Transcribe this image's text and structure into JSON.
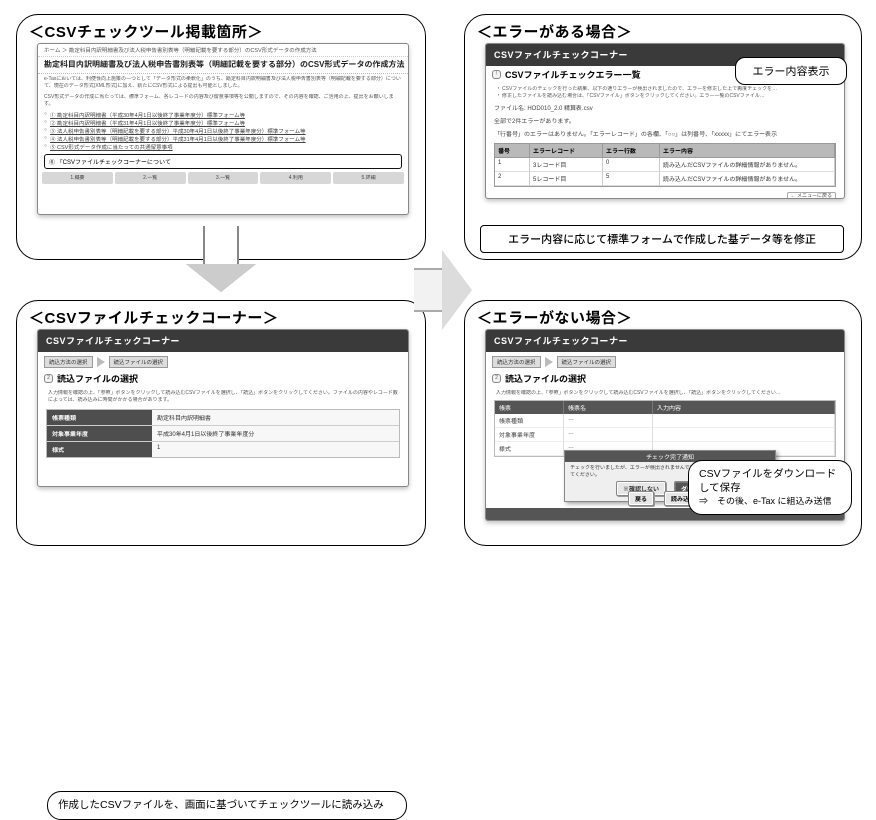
{
  "panelA": {
    "title": "CSVチェックツール掲載箇所",
    "breadcrumb": "ホーム ＞ 勘定科目内訳明細書及び法人税申告書別表等（明細記載を要する部分）のCSV形式データの作成方法",
    "heading": "勘定科目内訳明細書及び法人税申告書別表等（明細記載を要する部分）のCSV形式データの作成方法",
    "para1": "e-Taxにおいては、利便性向上施策の一つとして「データ形式の柔軟化」のうち、勘定科目内訳明細書及び法人税申告書別表等（明細記載を要する部分）について、現在のデータ形式(XML形式)に加え、新たにCSV形式による提出も可能としました。",
    "para2": "CSV形式データの作成に当たっては、標準フォーム、各レコードの内容及び留意事項等を公開しますので、その内容を確認、ご活用の上、提出をお願いします。",
    "links": [
      "① 勘定科目内訳明細書（平成30年4月1日以後終了事業年度分）標準フォーム等",
      "② 勘定科目内訳明細書（平成31年4月1日以後終了事業年度分）標準フォーム等",
      "③ 法人税申告書別表等（明細記載を要する部分）平成30年4月1日以後終了事業年度分）標準フォーム等",
      "④ 法人税申告書別表等（明細記載を要する部分）平成31年4月1日以後終了事業年度分）標準フォーム等",
      "⑤ CSV形式データ作成に当たっての共通留意事項"
    ],
    "boxlink": "⑥ 「CSVファイルチェックコーナーについて",
    "tabs": [
      "1.概要",
      "2.一覧",
      "3.一覧",
      "4.利用",
      "5.詳細"
    ]
  },
  "panelB": {
    "title": "CSVファイルチェックコーナー",
    "barTitle": "CSVファイルチェックコーナー",
    "step1": "読込方法の選択",
    "step2": "読込ファイルの選択",
    "sectionIcon": "2",
    "sectionTitle": "読込ファイルの選択",
    "note": "入力情報を確認の上、「参照」ボタンをクリックして読み込むCSVファイルを選択し、「読込」ボタンをクリックしてください。ファイルの内容やレコード数によっては、読み込みに時間がかかる場合があります。",
    "form": [
      {
        "label": "帳票種類",
        "value": "勘定科目内訳明細書"
      },
      {
        "label": "対象事業年度",
        "value": "平成30年4月1日以後終了事業年度分"
      },
      {
        "label": "様式",
        "value": "1"
      }
    ],
    "callout": "作成したCSVファイルを、画面に基づいてチェックツールに読み込み"
  },
  "panelC": {
    "title": "エラーがある場合",
    "barTitle": "CSVファイルチェックコーナー",
    "sectionIcon": "!",
    "sectionTitle": "CSVファイルチェックエラー一覧",
    "bullets": [
      "CSVファイルのチェックを行った結果、以下の通りエラーが検出されましたので、エラーを修正した上で再度チェックを…",
      "修正したファイルを読み込む場合は、「CSVファイル」ボタンをクリックしてください。エラー一覧のCSVファイル…"
    ],
    "meta": [
      "ファイル名: HOD010_2.0 精算表.csv",
      "全部で2件エラーがあります。",
      "「行番号」のエラーはありません。「エラーレコード」の各欄、「○○」は列番号、「xxxxx」にてエラー表示"
    ],
    "errHeaders": [
      "番号",
      "エラーレコード",
      "エラー行数",
      "エラー内容"
    ],
    "errRows": [
      [
        "1",
        "3レコード目",
        "0",
        "読み込んだCSVファイルの詳細情報がありません。"
      ],
      [
        "2",
        "5レコード目",
        "5",
        "読み込んだCSVファイルの詳細情報がありません。"
      ]
    ],
    "tagText": "エラー内容表示",
    "barNote": "エラー内容に応じて標準フォームで作成した基データ等を修正"
  },
  "panelD": {
    "title": "エラーがない場合",
    "barTitle": "CSVファイルチェックコーナー",
    "step1": "読込方法の選択",
    "step2": "読込ファイルの選択",
    "sectionIcon": "2",
    "sectionTitle": "読込ファイルの選択",
    "note": "入力情報を確認の上、「参照」ボタンをクリックして読み込むCSVファイルを選択し、「読込」ボタンをクリックしてください…",
    "tableHeaders": [
      "帳票",
      "帳票名",
      "入力内容"
    ],
    "tableRows": [
      [
        "帳票種類",
        "…",
        ""
      ],
      [
        "対象事業年度",
        "…",
        ""
      ],
      [
        "様式",
        "…",
        ""
      ]
    ],
    "modalTitle": "チェック完了通知",
    "modalBody": "チェックを行いましたが、エラーが検出されませんでした。ファイル名を確認の上保存してください。",
    "modalBtnLeft": "※確認しない",
    "modalBtnRight": "ダウンロード",
    "bottomBtnLeft": "戻る",
    "bottomBtnRight": "読み込み",
    "callout1": "CSVファイルをダウンロードして保存",
    "callout2": "⇒　その後、e-Tax に組込み送信"
  },
  "colors": {
    "dark": "#3a3a3a",
    "panel": "#000",
    "linkbox": "#111"
  }
}
